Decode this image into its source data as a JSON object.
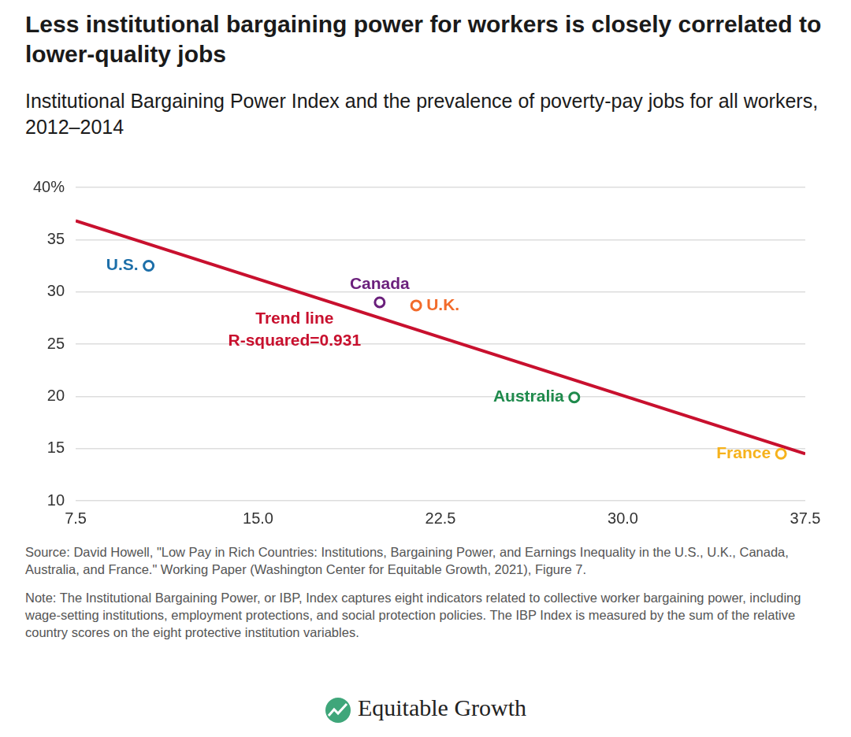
{
  "chart_data": {
    "type": "scatter",
    "title": "Less institutional bargaining power for workers is closely correlated to lower-quality jobs",
    "subtitle": "Institutional Bargaining Power Index and the prevalence of poverty-pay jobs for all workers, 2012–2014",
    "point_labels": [
      "U.S.",
      "Canada",
      "U.K.",
      "Australia",
      "France"
    ],
    "x": [
      10.5,
      20.0,
      21.5,
      28.0,
      36.5
    ],
    "values": [
      32.5,
      29.0,
      28.7,
      19.9,
      14.5
    ],
    "colors": [
      "#1d6fa9",
      "#6a1f7b",
      "#f26b2b",
      "#1f8a4c",
      "#f6b21c"
    ],
    "marker": "circle",
    "trend_line": {
      "name": "Trend line",
      "annotation": "R-squared=0.931",
      "color": "#c8102e",
      "x": [
        7.5,
        37.5
      ],
      "values": [
        36.8,
        14.5
      ]
    },
    "xlim": [
      7.5,
      37.5
    ],
    "xticks": [
      7.5,
      {
        "value": 15,
        "label": "15.0"
      },
      22.5,
      {
        "value": 30,
        "label": "30.0"
      },
      37.5
    ],
    "ylim": [
      10,
      40
    ],
    "yticks": [
      10,
      15,
      20,
      25,
      30,
      35,
      {
        "value": 40,
        "label": "40%"
      }
    ],
    "grid": true,
    "source": "Source: David Howell, \"Low Pay in Rich Countries: Institutions, Bargaining Power, and Earnings Inequality in the U.S., U.K., Canada, Australia, and France.\" Working Paper (Washington Center for Equitable Growth, 2021), Figure 7.",
    "note": "Note: The Institutional Bargaining Power, or IBP, Index captures eight indicators related to collective worker bargaining power, including wage-setting institutions, employment protections, and social protection policies. The IBP Index is measured by the sum of the relative country scores on the eight protective institution variables.",
    "logo": "Equitable Growth"
  }
}
